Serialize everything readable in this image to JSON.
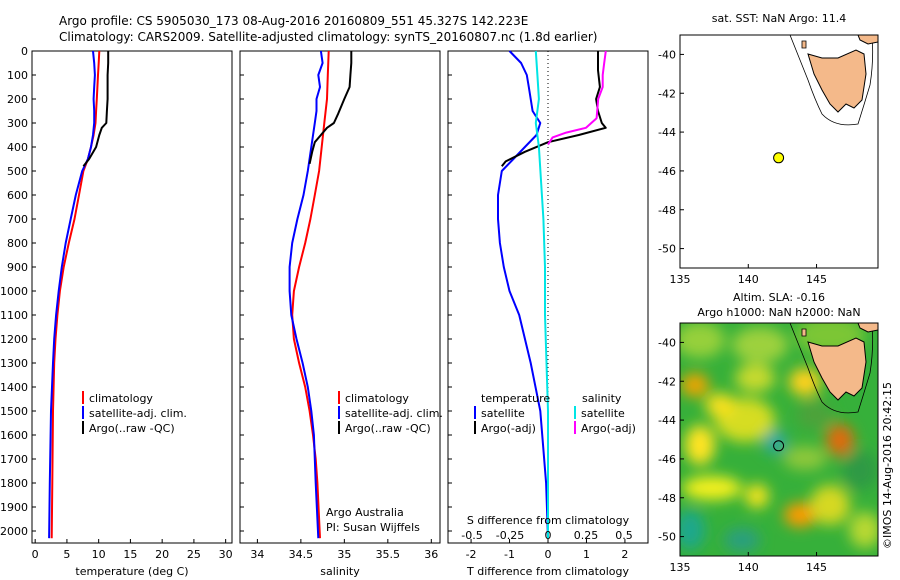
{
  "header": {
    "line1": "Argo profile: CS 5905030_173 08-Aug-2016 20160809_551 45.327S 142.223E",
    "line2": "Climatology: CARS2009. Satellite-adjusted climatology: synTS_20160807.nc (1.8d earlier)"
  },
  "colors": {
    "climatology": "#ff0000",
    "satellite": "#0000ff",
    "argo": "#000000",
    "salinity_satellite": "#00e5e5",
    "salinity_argo": "#ff00ff",
    "land": "#f4b98a",
    "float_marker": "#ffff00"
  },
  "chart_data": [
    {
      "type": "line",
      "panel": "temperature",
      "xlabel": "temperature (deg C)",
      "xlim": [
        -0.5,
        31
      ],
      "xticks": [
        "0",
        "5",
        "10",
        "15",
        "20",
        "25",
        "30"
      ],
      "ylim": [
        2050,
        0
      ],
      "yticks": [
        "0",
        "100",
        "200",
        "300",
        "400",
        "500",
        "600",
        "700",
        "800",
        "900",
        "1000",
        "1100",
        "1200",
        "1300",
        "1400",
        "1500",
        "1600",
        "1700",
        "1800",
        "1900",
        "2000"
      ],
      "legend": [
        "climatology",
        "satellite-adj. clim.",
        "Argo(..raw -QC)"
      ],
      "series": [
        {
          "name": "climatology",
          "color": "#ff0000",
          "x": [
            10.1,
            10.0,
            9.9,
            9.8,
            9.7,
            9.6,
            9.5,
            9.2,
            8.8,
            8.3,
            7.6,
            6.9,
            6.2,
            5.3,
            4.5,
            3.9,
            3.5,
            3.2,
            3.0,
            2.8,
            2.7,
            2.6
          ],
          "y": [
            0,
            50,
            100,
            150,
            200,
            250,
            300,
            350,
            400,
            450,
            500,
            600,
            700,
            800,
            900,
            1000,
            1100,
            1200,
            1300,
            1500,
            1800,
            2030
          ]
        },
        {
          "name": "satellite-adj. clim.",
          "color": "#0000ff",
          "x": [
            9.1,
            9.3,
            9.4,
            9.3,
            9.2,
            9.3,
            9.3,
            9.1,
            8.8,
            8.3,
            7.4,
            6.4,
            5.6,
            4.8,
            4.2,
            3.7,
            3.3,
            3.0,
            2.8,
            2.5,
            2.3,
            2.2
          ],
          "y": [
            0,
            50,
            100,
            150,
            200,
            250,
            300,
            350,
            400,
            450,
            500,
            600,
            700,
            800,
            900,
            1000,
            1100,
            1200,
            1300,
            1500,
            1800,
            2030
          ]
        },
        {
          "name": "Argo(..raw -QC)",
          "color": "#000000",
          "x": [
            11.5,
            11.5,
            11.4,
            11.4,
            11.4,
            11.3,
            11.2,
            10.5,
            10.1,
            9.6,
            8.5,
            7.6
          ],
          "y": [
            0,
            50,
            100,
            150,
            200,
            250,
            300,
            320,
            350,
            400,
            450,
            480
          ]
        }
      ]
    },
    {
      "type": "line",
      "panel": "salinity",
      "xlabel": "salinity",
      "xlim": [
        33.8,
        36.1
      ],
      "xticks": [
        "34",
        "34.5",
        "35",
        "35.5",
        "36"
      ],
      "ylim": [
        2050,
        0
      ],
      "legend": [
        "climatology",
        "satellite-adj. clim.",
        "Argo(..raw -QC)"
      ],
      "annotations": [
        "Argo Australia",
        "PI: Susan Wijffels"
      ],
      "series": [
        {
          "name": "climatology",
          "color": "#ff0000",
          "x": [
            34.82,
            34.81,
            34.8,
            34.77,
            34.74,
            34.71,
            34.66,
            34.61,
            34.55,
            34.48,
            34.42,
            34.4,
            34.42,
            34.48,
            34.55,
            34.6,
            34.64,
            34.67,
            34.69,
            34.72
          ],
          "y": [
            0,
            100,
            200,
            300,
            400,
            500,
            600,
            700,
            800,
            900,
            1000,
            1100,
            1200,
            1300,
            1400,
            1500,
            1600,
            1700,
            1800,
            2030
          ]
        },
        {
          "name": "satellite-adj. clim.",
          "color": "#0000ff",
          "x": [
            34.73,
            34.75,
            34.7,
            34.72,
            34.68,
            34.68,
            34.66,
            34.62,
            34.58,
            34.53,
            34.46,
            34.4,
            34.37,
            34.37,
            34.39,
            34.45,
            34.52,
            34.58,
            34.62,
            34.65,
            34.67,
            34.7
          ],
          "y": [
            0,
            50,
            100,
            150,
            200,
            250,
            300,
            400,
            500,
            600,
            700,
            800,
            900,
            1000,
            1100,
            1200,
            1300,
            1400,
            1500,
            1600,
            1800,
            2030
          ]
        },
        {
          "name": "Argo(..raw -QC)",
          "color": "#000000",
          "x": [
            35.08,
            35.08,
            35.07,
            35.06,
            35.0,
            34.93,
            34.88,
            34.8,
            34.73,
            34.66,
            34.63,
            34.6
          ],
          "y": [
            0,
            50,
            100,
            150,
            200,
            260,
            300,
            320,
            350,
            380,
            420,
            470
          ]
        }
      ]
    },
    {
      "type": "line",
      "panel": "difference",
      "xlabel": "T difference from climatology",
      "xlim": [
        -2.6,
        2.6
      ],
      "xticks": [
        "-2",
        "-1",
        "0",
        "1",
        "2"
      ],
      "xlabel_top": "S difference from climatology",
      "xticks_top": [
        "-0.5",
        "-0.25",
        "0",
        "0.25",
        "0.5"
      ],
      "ylim": [
        2050,
        0
      ],
      "legend_headers": [
        "temperature",
        "salinity"
      ],
      "legend": [
        "satellite",
        "Argo(-adj)",
        "satellite",
        "Argo(-adj)"
      ],
      "series": [
        {
          "name": "satellite",
          "group": "temperature",
          "color": "#0000ff",
          "x": [
            -1.0,
            -0.7,
            -0.55,
            -0.5,
            -0.45,
            -0.4,
            -0.2,
            -0.3,
            -0.6,
            -0.9,
            -1.2,
            -1.3,
            -1.3,
            -1.25,
            -1.15,
            -1.0,
            -0.75,
            -0.45,
            -0.2,
            -0.05,
            0.0
          ],
          "y": [
            0,
            50,
            100,
            150,
            200,
            250,
            300,
            350,
            400,
            450,
            500,
            600,
            700,
            800,
            900,
            1000,
            1100,
            1300,
            1500,
            1800,
            2030
          ]
        },
        {
          "name": "Argo(-adj)",
          "group": "temperature",
          "color": "#000000",
          "x": [
            1.3,
            1.3,
            1.35,
            1.25,
            1.3,
            1.4,
            1.5,
            0.8,
            0.0,
            -0.6,
            -1.1,
            -1.2
          ],
          "y": [
            0,
            80,
            150,
            200,
            250,
            300,
            320,
            350,
            380,
            420,
            460,
            480
          ]
        },
        {
          "name": "satellite",
          "group": "salinity",
          "color": "#00e5e5",
          "x": [
            -0.08,
            -0.07,
            -0.06,
            -0.08,
            -0.06,
            -0.05,
            -0.04,
            -0.03,
            -0.02,
            -0.02,
            -0.01,
            0.0,
            0.0,
            0.0
          ],
          "y": [
            0,
            100,
            200,
            300,
            400,
            500,
            600,
            700,
            900,
            1100,
            1300,
            1500,
            1800,
            2030
          ]
        },
        {
          "name": "Argo(-adj)",
          "group": "salinity",
          "color": "#ff00ff",
          "x": [
            0.38,
            0.37,
            0.36,
            0.36,
            0.33,
            0.32,
            0.25,
            0.12,
            0.03,
            0.0
          ],
          "y": [
            0,
            50,
            100,
            150,
            200,
            280,
            320,
            340,
            360,
            390
          ]
        }
      ]
    },
    {
      "type": "map",
      "panel": "sst_map",
      "title": "sat. SST: NaN Argo: 11.4",
      "xlim": [
        135,
        149.5
      ],
      "ylim": [
        -51,
        -39
      ],
      "xticks": [
        "135",
        "140",
        "145"
      ],
      "yticks": [
        "-40",
        "-42",
        "-44",
        "-46",
        "-48",
        "-50"
      ],
      "float_position": {
        "lon": 142.223,
        "lat": -45.327
      }
    },
    {
      "type": "heatmap",
      "panel": "altimetry_map",
      "title_line1": "Altim. SLA: -0.16",
      "title_line2": "Argo h1000: NaN h2000: NaN",
      "xlim": [
        135,
        149.5
      ],
      "ylim": [
        -51,
        -39
      ],
      "xticks": [
        "135",
        "140",
        "145"
      ],
      "yticks": [
        "-40",
        "-42",
        "-44",
        "-46",
        "-48",
        "-50"
      ],
      "float_position": {
        "lon": 142.223,
        "lat": -45.327
      }
    }
  ],
  "footer": {
    "credit": "©IMOS 14-Aug-2016 20:42:15"
  }
}
